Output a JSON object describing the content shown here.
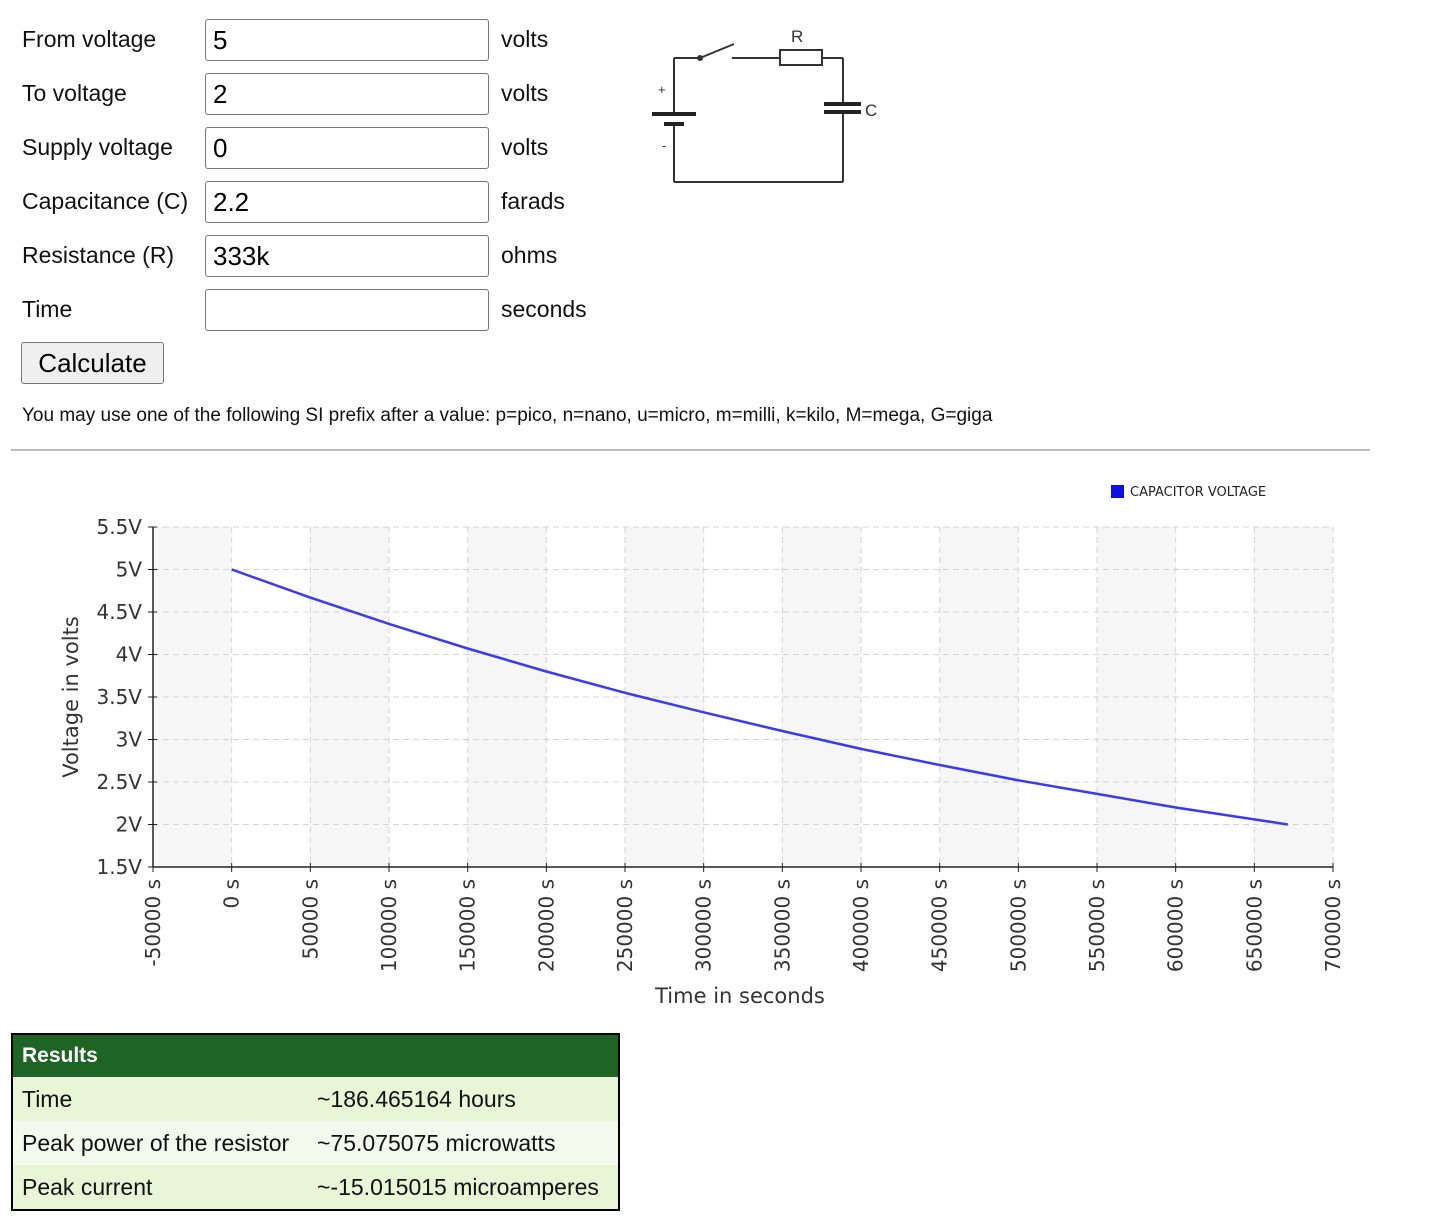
{
  "form": {
    "rows": [
      {
        "label": "From voltage",
        "value": "5",
        "unit": "volts"
      },
      {
        "label": "To voltage",
        "value": "2",
        "unit": "volts"
      },
      {
        "label": "Supply voltage",
        "value": "0",
        "unit": "volts"
      },
      {
        "label": "Capacitance (C)",
        "value": "2.2",
        "unit": "farads"
      },
      {
        "label": "Resistance (R)",
        "value": "333k",
        "unit": "ohms"
      },
      {
        "label": "Time",
        "value": "",
        "unit": "seconds"
      }
    ],
    "button_label": "Calculate",
    "note": "You may use one of the following SI prefix after a value: p=pico, n=nano, u=micro, m=milli, k=kilo, M=mega, G=giga"
  },
  "circuit": {
    "resistor_label": "R",
    "capacitor_label": "C",
    "plus": "+",
    "minus": "-"
  },
  "chart_data": {
    "type": "line",
    "xlabel": "Time in seconds",
    "ylabel": "Voltage in volts",
    "xlim": [
      -50000,
      700000
    ],
    "ylim": [
      1.5,
      5.5
    ],
    "x_ticks": [
      "-50000 s",
      "0 s",
      "50000 s",
      "100000 s",
      "150000 s",
      "200000 s",
      "250000 s",
      "300000 s",
      "350000 s",
      "400000 s",
      "450000 s",
      "500000 s",
      "550000 s",
      "600000 s",
      "650000 s",
      "700000 s"
    ],
    "y_ticks": [
      "1.5V",
      "2V",
      "2.5V",
      "3V",
      "3.5V",
      "4V",
      "4.5V",
      "5V",
      "5.5V"
    ],
    "grid": true,
    "legend_position": "top-right",
    "series": [
      {
        "name": "CAPACITOR VOLTAGE",
        "color": "#3a3af0",
        "x": [
          0,
          50000,
          100000,
          150000,
          200000,
          250000,
          300000,
          350000,
          400000,
          450000,
          500000,
          550000,
          600000,
          650000,
          671275
        ],
        "y": [
          5.0,
          4.67,
          4.36,
          4.07,
          3.8,
          3.55,
          3.32,
          3.1,
          2.89,
          2.7,
          2.52,
          2.36,
          2.2,
          2.06,
          2.0
        ]
      }
    ]
  },
  "results": {
    "title": "Results",
    "rows": [
      {
        "label": "Time",
        "value": "~186.465164 hours"
      },
      {
        "label": "Peak power of the resistor",
        "value": "~75.075075 microwatts"
      },
      {
        "label": "Peak current",
        "value": "~-15.015015 microamperes"
      }
    ]
  }
}
